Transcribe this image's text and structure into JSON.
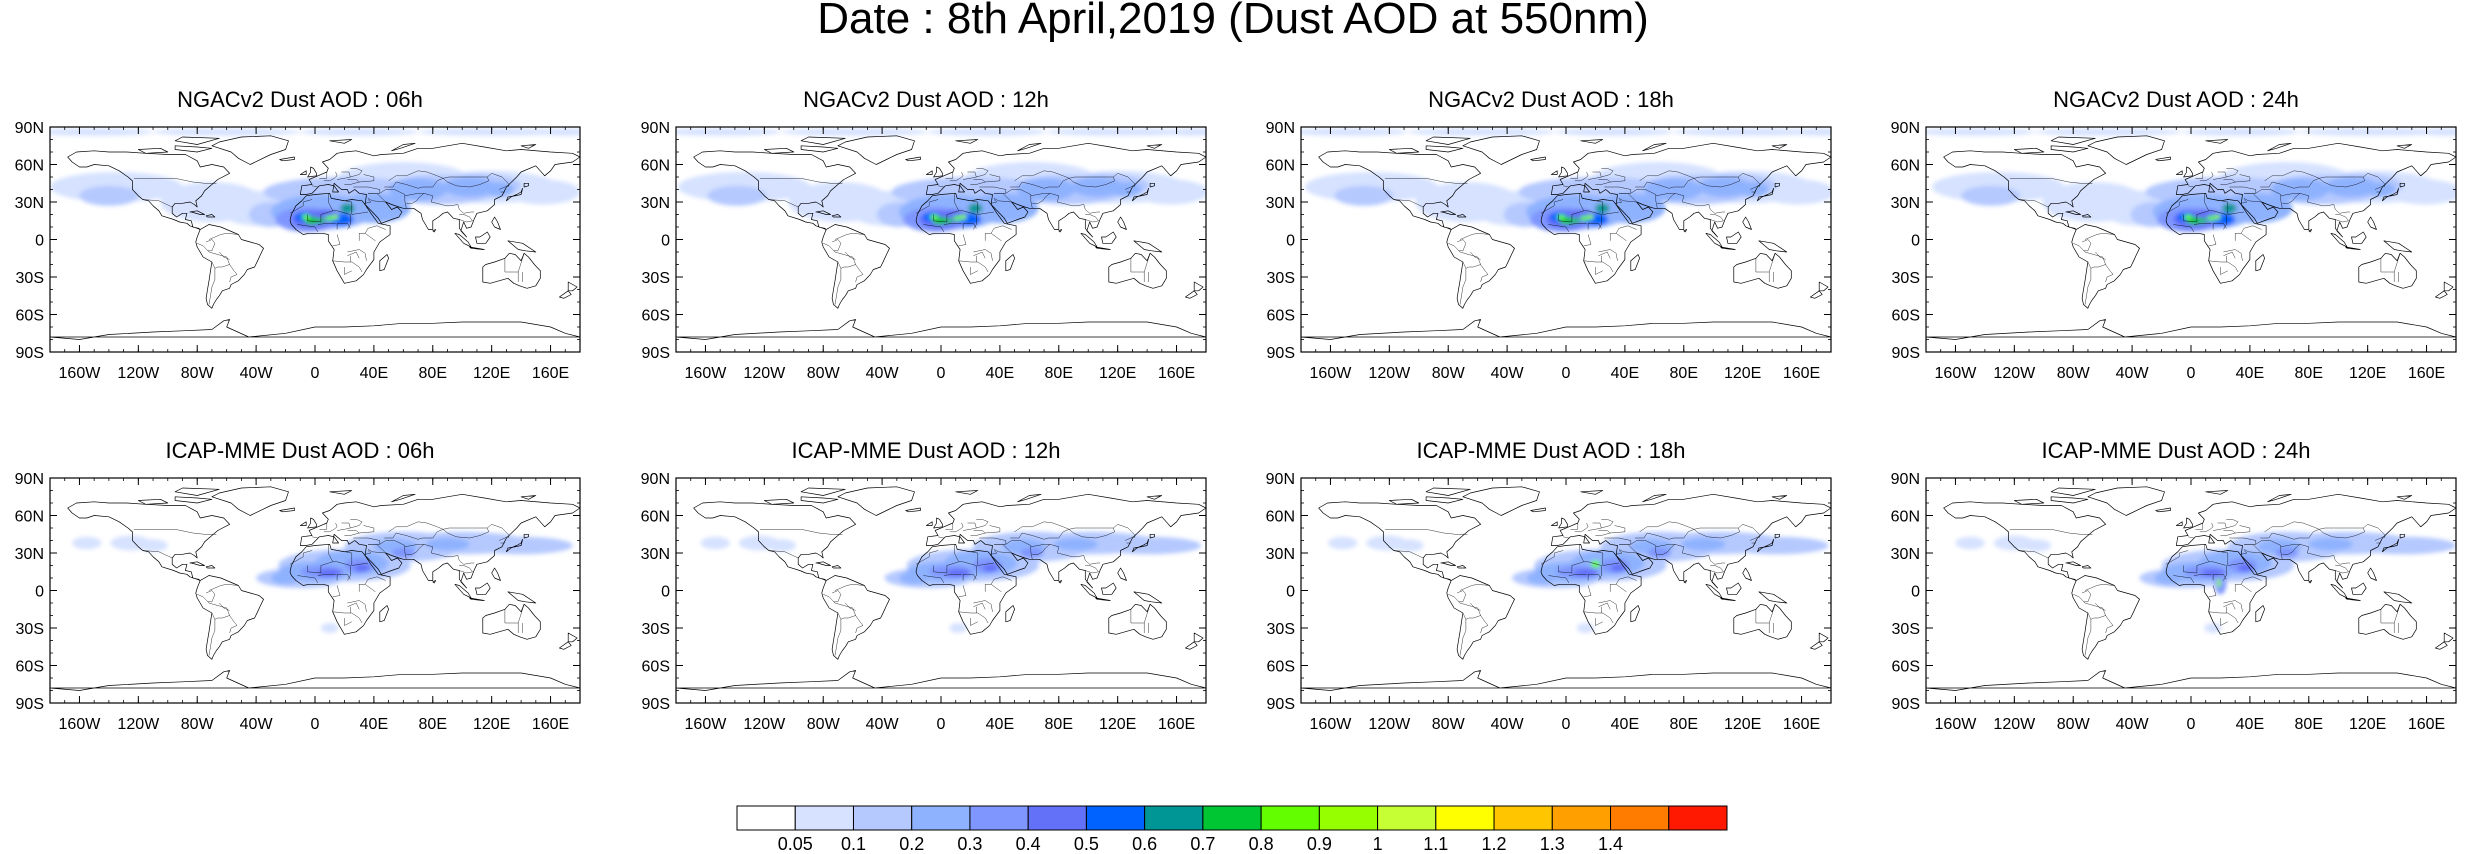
{
  "title": "Date : 8th April,2019 (Dust AOD at 550nm)",
  "lat_ticks": [
    "90N",
    "60N",
    "30N",
    "0",
    "30S",
    "60S",
    "90S"
  ],
  "lon_ticks": [
    "160W",
    "120W",
    "80W",
    "40W",
    "0",
    "40E",
    "80E",
    "120E",
    "160E"
  ],
  "lon_tick_values": [
    -160,
    -120,
    -80,
    -40,
    0,
    40,
    80,
    120,
    160
  ],
  "lat_tick_values": [
    90,
    60,
    30,
    0,
    -30,
    -60,
    -90
  ],
  "panels": [
    {
      "title": "NGACv2 Dust AOD : 06h",
      "model": "NGACv2",
      "hour": 6
    },
    {
      "title": "NGACv2 Dust AOD : 12h",
      "model": "NGACv2",
      "hour": 12
    },
    {
      "title": "NGACv2 Dust AOD : 18h",
      "model": "NGACv2",
      "hour": 18
    },
    {
      "title": "NGACv2 Dust AOD : 24h",
      "model": "NGACv2",
      "hour": 24
    },
    {
      "title": "ICAP-MME Dust AOD : 06h",
      "model": "ICAP-MME",
      "hour": 6
    },
    {
      "title": "ICAP-MME Dust AOD : 12h",
      "model": "ICAP-MME",
      "hour": 12
    },
    {
      "title": "ICAP-MME Dust AOD : 18h",
      "model": "ICAP-MME",
      "hour": 18
    },
    {
      "title": "ICAP-MME Dust AOD : 24h",
      "model": "ICAP-MME",
      "hour": 24
    }
  ],
  "colorbar": {
    "labels": [
      "0.05",
      "0.1",
      "0.2",
      "0.3",
      "0.4",
      "0.5",
      "0.6",
      "0.7",
      "0.8",
      "0.9",
      "1",
      "1.1",
      "1.2",
      "1.3",
      "1.4"
    ],
    "colors": [
      "#ffffff",
      "#d6e2ff",
      "#b5c9ff",
      "#8fb2ff",
      "#7f96ff",
      "#6370f8",
      "#0063ff",
      "#009696",
      "#00c633",
      "#63ff00",
      "#96ff00",
      "#c6ff33",
      "#ffff00",
      "#ffc600",
      "#ffa000",
      "#ff7c00",
      "#ff1900"
    ]
  },
  "colors": {
    "land_outline": "#000000",
    "background": "#ffffff"
  }
}
